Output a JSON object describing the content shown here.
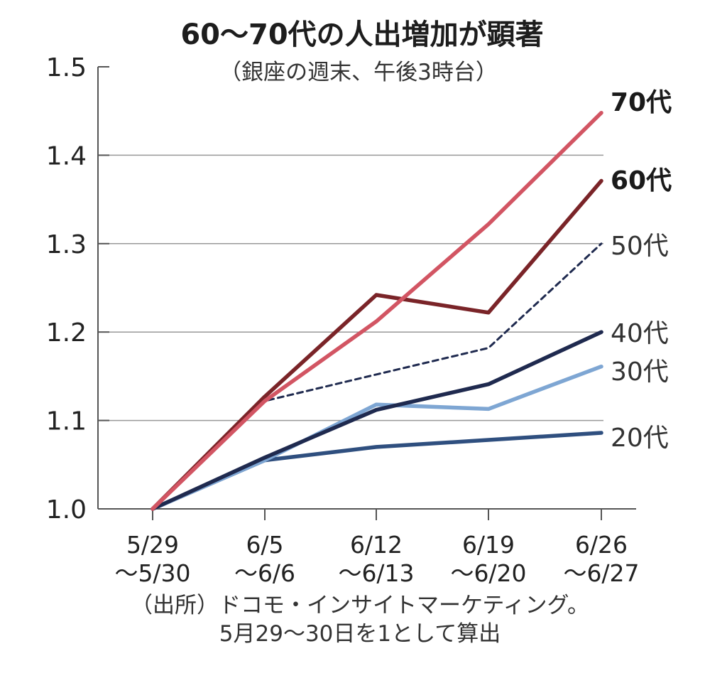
{
  "chart_data": {
    "type": "line",
    "title": "60～70代の人出増加が顕著",
    "subtitle": "（銀座の週末、午後3時台）",
    "categories": [
      [
        "5/29",
        "～5/30"
      ],
      [
        "6/5",
        "～6/6"
      ],
      [
        "6/12",
        "～6/13"
      ],
      [
        "6/19",
        "～6/20"
      ],
      [
        "6/26",
        "～6/27"
      ]
    ],
    "ylim": [
      1.0,
      1.5
    ],
    "yticks": [
      "1.0",
      "1.1",
      "1.2",
      "1.3",
      "1.4",
      "1.5"
    ],
    "grid": true,
    "series": [
      {
        "name": "20代",
        "values": [
          1.0,
          1.055,
          1.07,
          1.078,
          1.086
        ],
        "color": "#2f4f7f",
        "dashed": false,
        "bold_label": false
      },
      {
        "name": "30代",
        "values": [
          1.0,
          1.055,
          1.118,
          1.113,
          1.161
        ],
        "color": "#7ea6d3",
        "dashed": false,
        "bold_label": false
      },
      {
        "name": "40代",
        "values": [
          1.0,
          1.058,
          1.112,
          1.141,
          1.2
        ],
        "color": "#1f2a4f",
        "dashed": false,
        "bold_label": false
      },
      {
        "name": "50代",
        "values": [
          1.0,
          1.122,
          1.152,
          1.182,
          1.3
        ],
        "color": "#1f2a4f",
        "dashed": true,
        "bold_label": false
      },
      {
        "name": "60代",
        "values": [
          1.0,
          1.127,
          1.242,
          1.222,
          1.371
        ],
        "color": "#7a2428",
        "dashed": false,
        "bold_label": true
      },
      {
        "name": "70代",
        "values": [
          1.0,
          1.122,
          1.212,
          1.322,
          1.448
        ],
        "color": "#d25563",
        "dashed": false,
        "bold_label": true
      }
    ],
    "note": [
      "（出所）ドコモ・インサイトマーケティング。",
      "5月29～30日を1として算出"
    ]
  }
}
